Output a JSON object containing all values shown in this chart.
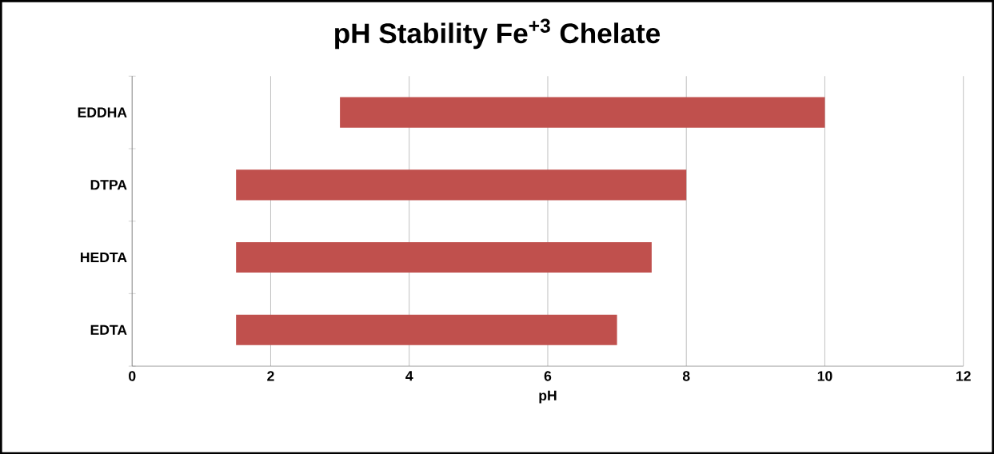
{
  "chart_data": {
    "type": "bar",
    "orientation": "horizontal",
    "title": "pH Stability Fe$^{+3}$ Chelate",
    "xlabel": "pH",
    "categories": [
      "EDDHA",
      "DTPA",
      "HEDTA",
      "EDTA"
    ],
    "base": [
      3,
      1.5,
      1.5,
      1.5
    ],
    "values": [
      7,
      6.5,
      6,
      5.5
    ],
    "color": "#c0504d",
    "xlim": [
      0,
      12
    ],
    "xticks": [
      0,
      2,
      4,
      6,
      8,
      10,
      12
    ],
    "grid": "x"
  }
}
